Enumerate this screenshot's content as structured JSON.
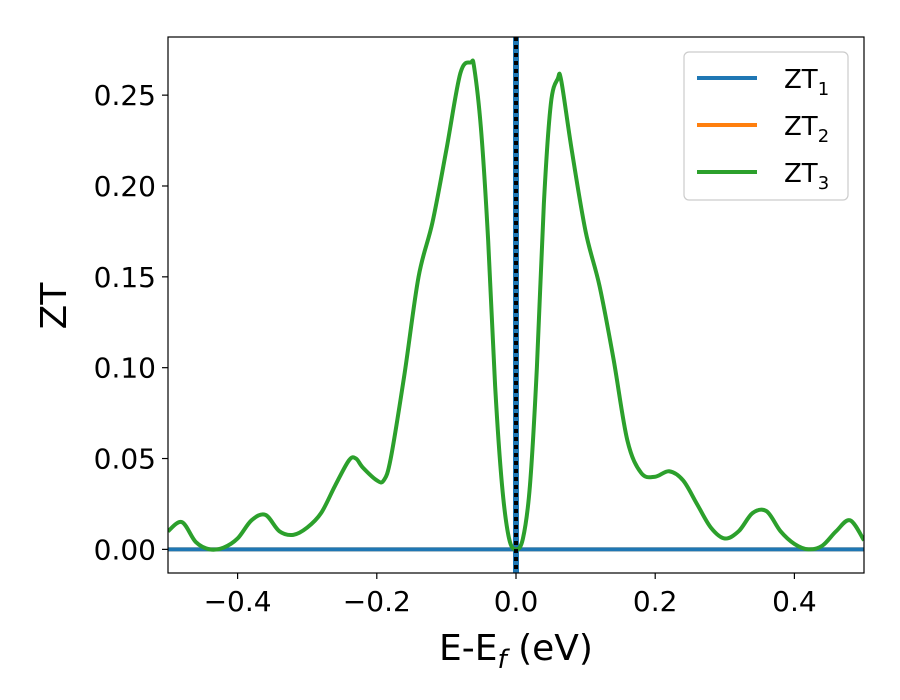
{
  "chart_data": {
    "type": "line",
    "xlabel": "E-E",
    "xlabel_sub": "f",
    "xlabel_unit": " (eV)",
    "ylabel": "ZT",
    "xlim": [
      -0.5,
      0.5
    ],
    "ylim": [
      -0.013,
      0.282
    ],
    "xticks": [
      -0.4,
      -0.2,
      0.0,
      0.2,
      0.4
    ],
    "xtick_labels": [
      "−0.4",
      "−0.2",
      "0.0",
      "0.2",
      "0.4"
    ],
    "yticks": [
      0.0,
      0.05,
      0.1,
      0.15,
      0.2,
      0.25
    ],
    "ytick_labels": [
      "0.00",
      "0.05",
      "0.10",
      "0.15",
      "0.20",
      "0.25"
    ],
    "grid": false,
    "legend_position": "top-right",
    "vline": {
      "x": 0.0,
      "color": "#000000",
      "style": "dotted"
    },
    "series": [
      {
        "name": "ZT",
        "sub": "1",
        "color": "#1f77b4",
        "x": [
          -0.5,
          0.5
        ],
        "y": [
          0.0,
          0.0
        ],
        "vertical_at_x": 0.0
      },
      {
        "name": "ZT",
        "sub": "2",
        "color": "#ff7f0e",
        "x": [
          -0.5,
          0.5
        ],
        "y": [
          0.0,
          0.0
        ]
      },
      {
        "name": "ZT",
        "sub": "3",
        "color": "#2ca02c",
        "x": [
          -0.5,
          -0.48,
          -0.46,
          -0.44,
          -0.42,
          -0.4,
          -0.38,
          -0.36,
          -0.34,
          -0.32,
          -0.3,
          -0.28,
          -0.26,
          -0.24,
          -0.23,
          -0.22,
          -0.2,
          -0.19,
          -0.18,
          -0.16,
          -0.14,
          -0.12,
          -0.1,
          -0.08,
          -0.065,
          -0.06,
          -0.05,
          -0.04,
          -0.03,
          -0.02,
          -0.01,
          0.0,
          0.01,
          0.02,
          0.03,
          0.04,
          0.05,
          0.06,
          0.065,
          0.08,
          0.1,
          0.12,
          0.14,
          0.16,
          0.18,
          0.2,
          0.22,
          0.24,
          0.26,
          0.28,
          0.3,
          0.32,
          0.34,
          0.36,
          0.38,
          0.4,
          0.42,
          0.44,
          0.46,
          0.48,
          0.5
        ],
        "y": [
          0.01,
          0.015,
          0.004,
          0.0,
          0.001,
          0.006,
          0.016,
          0.019,
          0.01,
          0.008,
          0.012,
          0.02,
          0.035,
          0.049,
          0.05,
          0.045,
          0.038,
          0.038,
          0.05,
          0.097,
          0.15,
          0.18,
          0.22,
          0.262,
          0.268,
          0.265,
          0.23,
          0.17,
          0.09,
          0.035,
          0.006,
          0.0,
          0.006,
          0.035,
          0.1,
          0.19,
          0.245,
          0.259,
          0.258,
          0.22,
          0.175,
          0.145,
          0.105,
          0.06,
          0.042,
          0.04,
          0.043,
          0.038,
          0.025,
          0.012,
          0.006,
          0.01,
          0.02,
          0.021,
          0.01,
          0.003,
          0.0,
          0.002,
          0.01,
          0.016,
          0.005
        ]
      }
    ]
  }
}
